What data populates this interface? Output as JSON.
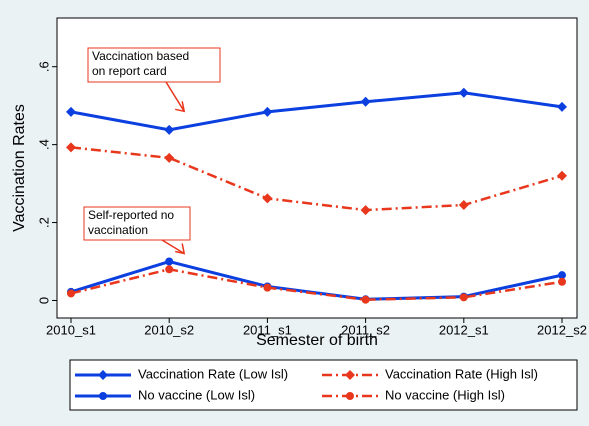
{
  "chart_data": {
    "type": "line",
    "x_label": "Semester of birth",
    "y_label": "Vaccination Rates",
    "categories": [
      "2010_s1",
      "2010_s2",
      "2011_s1",
      "2011_s2",
      "2012_s1",
      "2012_s2"
    ],
    "series": [
      {
        "name": "Vaccination Rate (Low Isl)",
        "color": "#0b3fe0",
        "line_style": "solid",
        "marker": "diamond",
        "values": [
          0.484,
          0.438,
          0.484,
          0.51,
          0.533,
          0.497
        ]
      },
      {
        "name": "Vaccination Rate (High Isl)",
        "color": "#e8371c",
        "line_style": "dashdot",
        "marker": "diamond",
        "values": [
          0.393,
          0.366,
          0.262,
          0.232,
          0.245,
          0.32
        ]
      },
      {
        "name": "No vaccine (Low Isl)",
        "color": "#0b3fe0",
        "line_style": "solid",
        "marker": "circle",
        "values": [
          0.022,
          0.1,
          0.036,
          0.003,
          0.01,
          0.065
        ]
      },
      {
        "name": "No vaccine (High Isl)",
        "color": "#e8371c",
        "line_style": "dashdot",
        "marker": "circle",
        "values": [
          0.018,
          0.08,
          0.033,
          0.002,
          0.008,
          0.048
        ]
      }
    ],
    "ylim": [
      -0.045,
      0.725
    ],
    "yticks": [
      0,
      {
        "value": 0.2,
        "label": ".2"
      },
      {
        "value": 0.4,
        "label": ".4"
      },
      {
        "value": 0.6,
        "label": ".6"
      }
    ],
    "annotations": [
      {
        "lines": [
          "Vaccination based",
          "on report card"
        ],
        "category": 1,
        "value": 0.465
      },
      {
        "lines": [
          "Self-reported no",
          "vaccination"
        ],
        "category": 1,
        "value": 0.1
      }
    ],
    "legend": "bottom"
  }
}
